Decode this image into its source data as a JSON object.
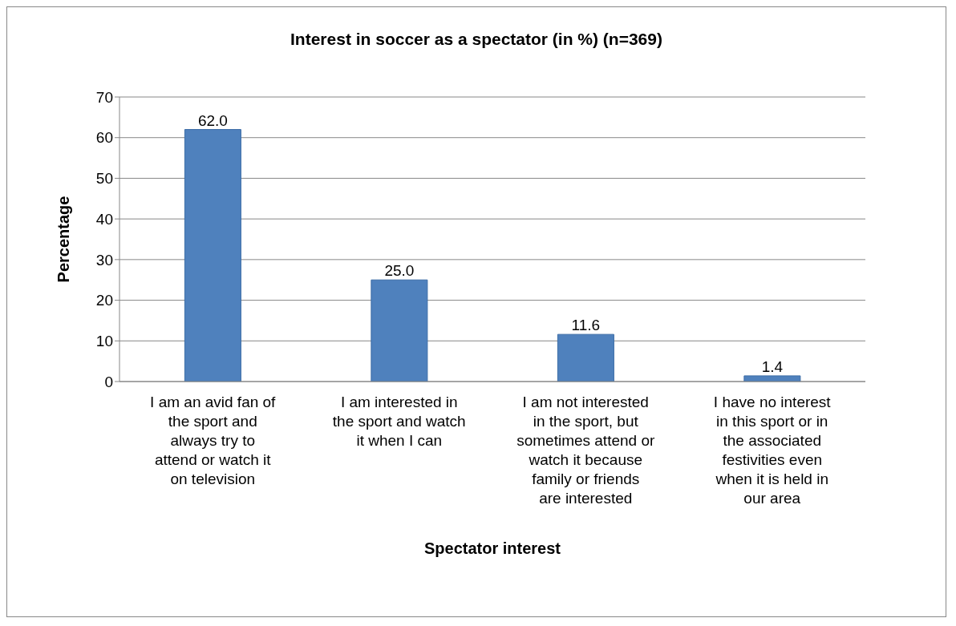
{
  "chart_data": {
    "type": "bar",
    "title": "Interest in soccer as a spectator (in %) (n=369)",
    "xlabel": "Spectator interest",
    "ylabel": "Percentage",
    "categories": [
      "I am an avid fan of the sport and always try to attend or watch it on television",
      "I am interested in the sport and watch it when I can",
      "I am not interested in the sport, but sometimes attend or watch it because family or friends are interested",
      "I have no interest in this sport or in the associated festivities even when it is held in our area"
    ],
    "values": [
      62.0,
      25.0,
      11.6,
      1.4
    ],
    "value_labels": [
      "62.0",
      "25.0",
      "11.6",
      "1.4"
    ],
    "color": "#4f81bd",
    "ylim": [
      0,
      70
    ],
    "yticks": [
      0,
      10,
      20,
      30,
      40,
      50,
      60,
      70
    ],
    "grid": "y",
    "legend": false
  }
}
